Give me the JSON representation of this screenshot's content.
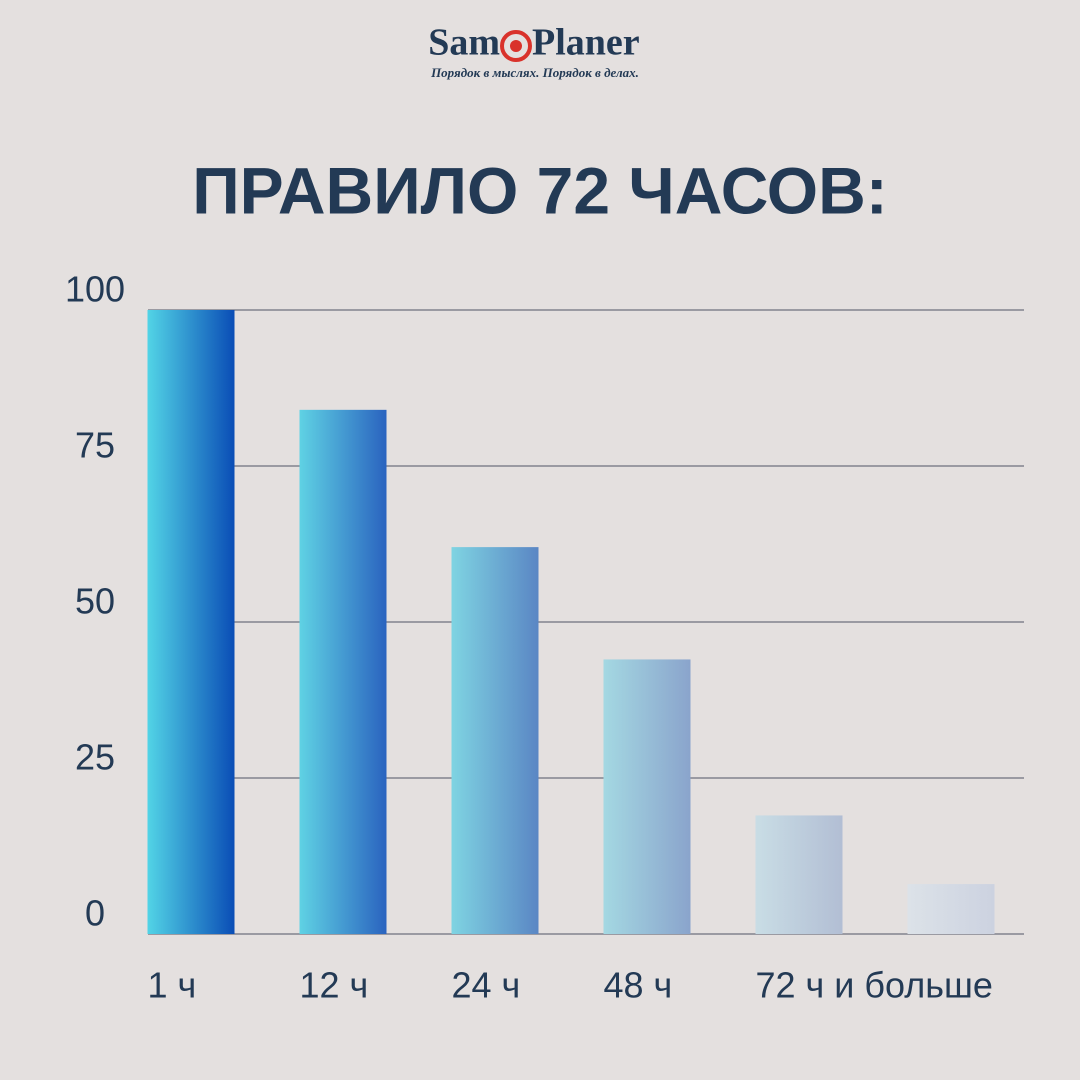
{
  "logo": {
    "name_left": "Sam",
    "name_right": "Planer",
    "tagline": "Порядок в мыслях. Порядок в делах."
  },
  "chart_data": {
    "type": "bar",
    "title": "ПРАВИЛО 72 ЧАСОВ:",
    "categories": [
      "1 ч",
      "12 ч",
      "24 ч",
      "48 ч",
      "72 ч и больше",
      null
    ],
    "values": [
      100,
      84,
      62,
      44,
      19,
      8
    ],
    "colors": [
      [
        "#52d4e6",
        "#0a4db6"
      ],
      [
        "#5fd2e4",
        "#2a63bf"
      ],
      [
        "#7fd4e2",
        "#5a86c4"
      ],
      [
        "#a4d8e2",
        "#8aa4cc"
      ],
      [
        "#c9dde5",
        "#b2bed4"
      ],
      [
        "#dce2e8",
        "#ccd2e0"
      ]
    ],
    "ylim": [
      0,
      100
    ],
    "yticks": [
      0,
      25,
      50,
      75,
      100
    ],
    "grid": true
  }
}
